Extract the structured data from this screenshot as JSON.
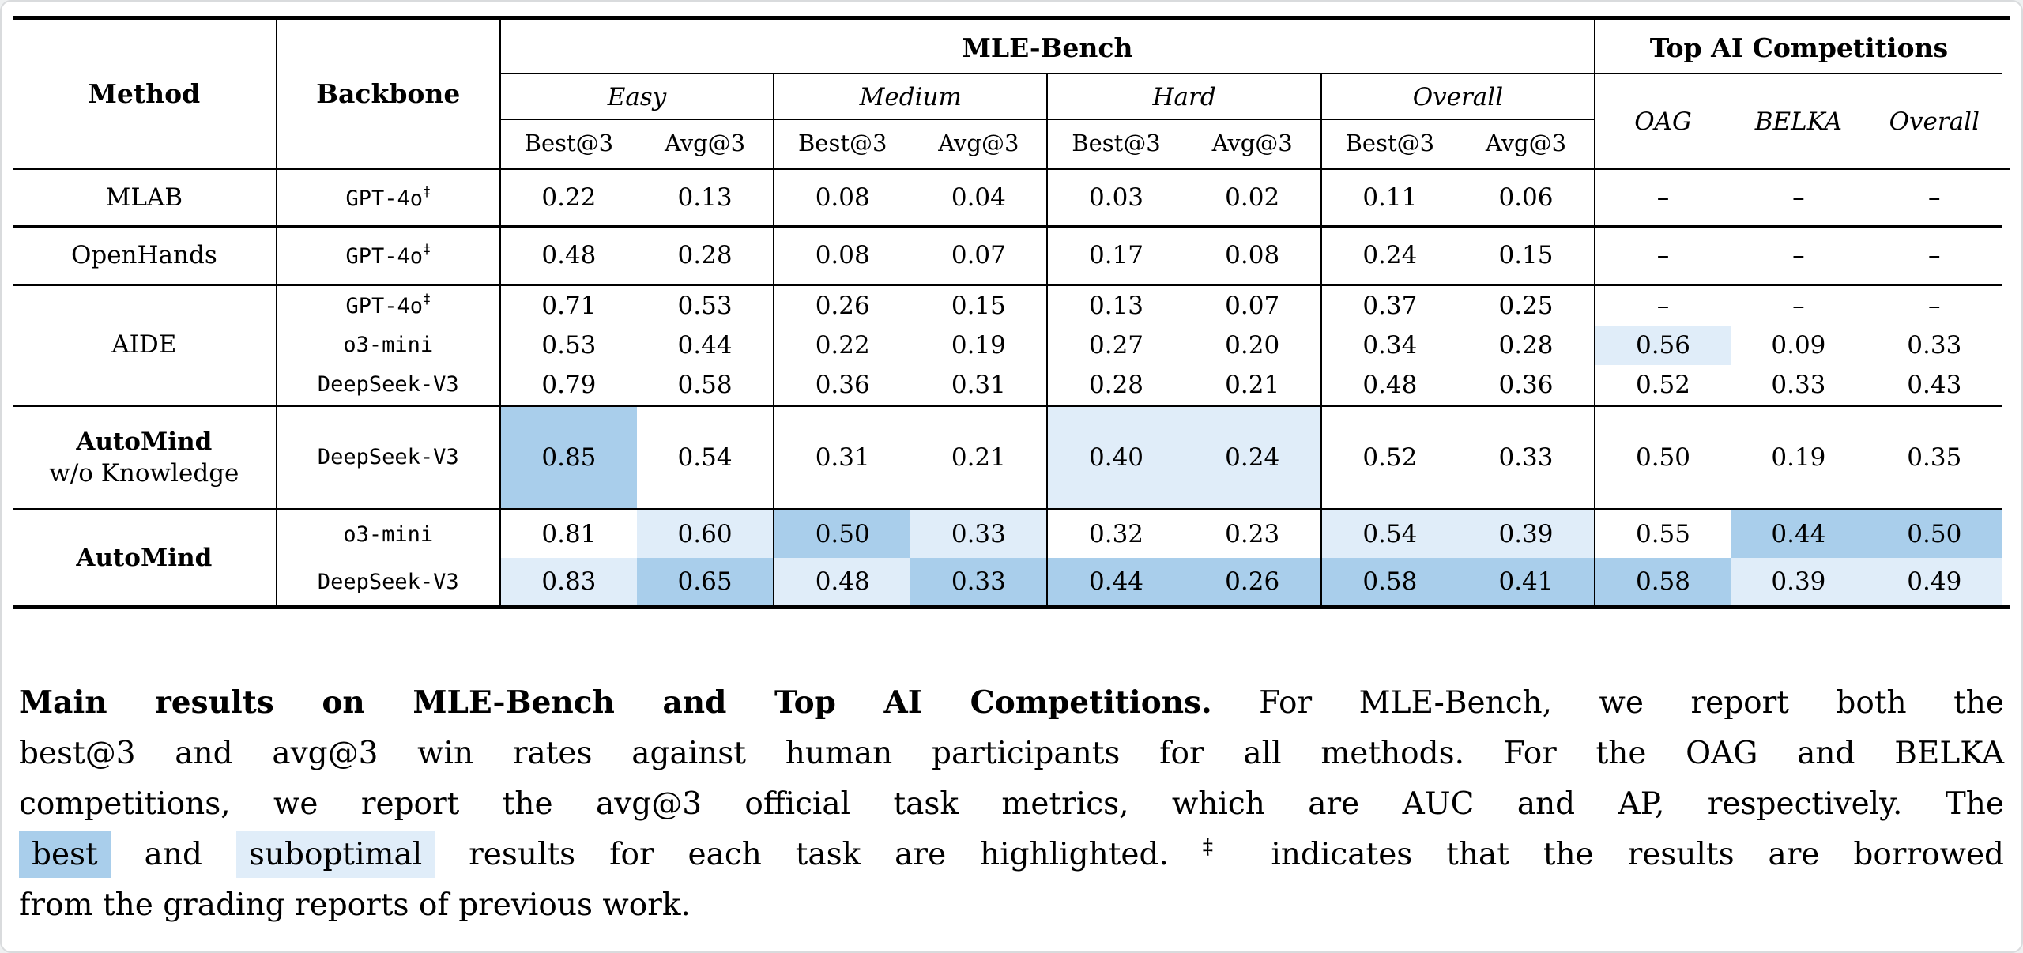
{
  "colors": {
    "best_highlight": "#a9ceeb",
    "suboptimal_highlight": "#e0edf9",
    "rule": "#000000"
  },
  "table": {
    "headers": {
      "method": "Method",
      "backbone": "Backbone",
      "mle_bench": "MLE-Bench",
      "top_ai": "Top AI Competitions",
      "mle_groups": [
        "Easy",
        "Medium",
        "Hard",
        "Overall"
      ],
      "metric_best": "Best@3",
      "metric_avg": "Avg@3",
      "top_ai_cols": [
        "OAG",
        "BELKA",
        "Overall"
      ]
    },
    "highlight_legend": {
      "1": "best",
      "2": "suboptimal"
    },
    "groups": [
      {
        "method_lines": [
          {
            "text": "MLAB",
            "bold": false
          }
        ],
        "style": "default",
        "rows": [
          {
            "backbone": "GPT-4o",
            "mark": "‡",
            "cells": [
              [
                "0.22",
                0
              ],
              [
                "0.13",
                0
              ],
              [
                "0.08",
                0
              ],
              [
                "0.04",
                0
              ],
              [
                "0.03",
                0
              ],
              [
                "0.02",
                0
              ],
              [
                "0.11",
                0
              ],
              [
                "0.06",
                0
              ],
              [
                "–",
                0
              ],
              [
                "–",
                0
              ],
              [
                "–",
                0
              ]
            ]
          }
        ]
      },
      {
        "method_lines": [
          {
            "text": "OpenHands",
            "bold": false
          }
        ],
        "style": "default",
        "rows": [
          {
            "backbone": "GPT-4o",
            "mark": "‡",
            "cells": [
              [
                "0.48",
                0
              ],
              [
                "0.28",
                0
              ],
              [
                "0.08",
                0
              ],
              [
                "0.07",
                0
              ],
              [
                "0.17",
                0
              ],
              [
                "0.08",
                0
              ],
              [
                "0.24",
                0
              ],
              [
                "0.15",
                0
              ],
              [
                "–",
                0
              ],
              [
                "–",
                0
              ],
              [
                "–",
                0
              ]
            ]
          }
        ]
      },
      {
        "method_lines": [
          {
            "text": "AIDE",
            "bold": false
          }
        ],
        "style": "compact",
        "rows": [
          {
            "backbone": "GPT-4o",
            "mark": "‡",
            "cells": [
              [
                "0.71",
                0
              ],
              [
                "0.53",
                0
              ],
              [
                "0.26",
                0
              ],
              [
                "0.15",
                0
              ],
              [
                "0.13",
                0
              ],
              [
                "0.07",
                0
              ],
              [
                "0.37",
                0
              ],
              [
                "0.25",
                0
              ],
              [
                "–",
                0
              ],
              [
                "–",
                0
              ],
              [
                "–",
                0
              ]
            ]
          },
          {
            "backbone": "o3-mini",
            "mark": "",
            "cells": [
              [
                "0.53",
                0
              ],
              [
                "0.44",
                0
              ],
              [
                "0.22",
                0
              ],
              [
                "0.19",
                0
              ],
              [
                "0.27",
                0
              ],
              [
                "0.20",
                0
              ],
              [
                "0.34",
                0
              ],
              [
                "0.28",
                0
              ],
              [
                "0.56",
                2
              ],
              [
                "0.09",
                0
              ],
              [
                "0.33",
                0
              ]
            ]
          },
          {
            "backbone": "DeepSeek-V3",
            "mark": "",
            "cells": [
              [
                "0.79",
                0
              ],
              [
                "0.58",
                0
              ],
              [
                "0.36",
                0
              ],
              [
                "0.31",
                0
              ],
              [
                "0.28",
                0
              ],
              [
                "0.21",
                0
              ],
              [
                "0.48",
                0
              ],
              [
                "0.36",
                0
              ],
              [
                "0.52",
                0
              ],
              [
                "0.33",
                0
              ],
              [
                "0.43",
                0
              ]
            ]
          }
        ]
      },
      {
        "method_lines": [
          {
            "text": "AutoMind",
            "bold": true
          },
          {
            "text": "w/o Knowledge",
            "bold": false
          }
        ],
        "style": "tall",
        "rows": [
          {
            "backbone": "DeepSeek-V3",
            "mark": "",
            "cells": [
              [
                "0.85",
                1
              ],
              [
                "0.54",
                0
              ],
              [
                "0.31",
                0
              ],
              [
                "0.21",
                0
              ],
              [
                "0.40",
                2
              ],
              [
                "0.24",
                2
              ],
              [
                "0.52",
                0
              ],
              [
                "0.33",
                0
              ],
              [
                "0.50",
                0
              ],
              [
                "0.19",
                0
              ],
              [
                "0.35",
                0
              ]
            ]
          }
        ]
      },
      {
        "method_lines": [
          {
            "text": "AutoMind",
            "bold": true
          }
        ],
        "style": "automind",
        "rows": [
          {
            "backbone": "o3-mini",
            "mark": "",
            "cells": [
              [
                "0.81",
                0
              ],
              [
                "0.60",
                2
              ],
              [
                "0.50",
                1
              ],
              [
                "0.33",
                2
              ],
              [
                "0.32",
                0
              ],
              [
                "0.23",
                0
              ],
              [
                "0.54",
                2
              ],
              [
                "0.39",
                2
              ],
              [
                "0.55",
                0
              ],
              [
                "0.44",
                1
              ],
              [
                "0.50",
                1
              ]
            ]
          },
          {
            "backbone": "DeepSeek-V3",
            "mark": "",
            "cells": [
              [
                "0.83",
                2
              ],
              [
                "0.65",
                1
              ],
              [
                "0.48",
                2
              ],
              [
                "0.33",
                1
              ],
              [
                "0.44",
                1
              ],
              [
                "0.26",
                1
              ],
              [
                "0.58",
                1
              ],
              [
                "0.41",
                1
              ],
              [
                "0.58",
                1
              ],
              [
                "0.39",
                2
              ],
              [
                "0.49",
                2
              ]
            ]
          }
        ]
      }
    ]
  },
  "caption": {
    "lines": [
      {
        "segments": [
          {
            "t": "Main results on MLE-Bench and Top AI Competitions.",
            "style": "bold"
          },
          {
            "t": " For MLE-Bench, we report both the",
            "style": ""
          }
        ]
      },
      {
        "segments": [
          {
            "t": "best@3 and avg@3 win rates against human participants for all methods. For the OAG and BELKA",
            "style": ""
          }
        ]
      },
      {
        "segments": [
          {
            "t": "competitions, we report the avg@3 official task metrics, which are AUC and AP, respectively. The",
            "style": ""
          }
        ]
      },
      {
        "segments": [
          {
            "t": "best",
            "style": "hl-best"
          },
          {
            "t": " and ",
            "style": ""
          },
          {
            "t": "suboptimal",
            "style": "hl-sub"
          },
          {
            "t": " results for each task are highlighted. ",
            "style": ""
          },
          {
            "t": "‡",
            "style": "sup"
          },
          {
            "t": " indicates that the results are borrowed",
            "style": ""
          }
        ]
      },
      {
        "segments": [
          {
            "t": "from the grading reports of previous work.",
            "style": ""
          }
        ]
      }
    ]
  }
}
